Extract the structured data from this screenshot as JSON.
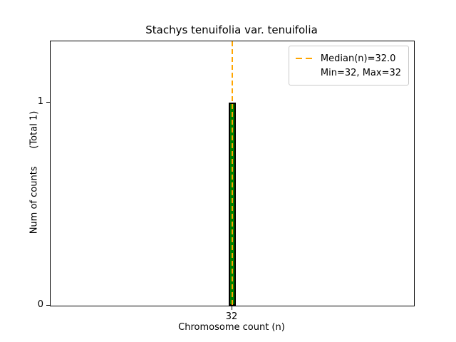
{
  "chart_data": {
    "type": "bar",
    "title": "Stachys tenuifolia var. tenuifolia",
    "xlabel": "Chromosome count (n)",
    "ylabel": "Num of counts      (Total 1)",
    "total_label": "(Total 1)",
    "categories": [
      "32"
    ],
    "x": [
      32
    ],
    "values": [
      1
    ],
    "xlim": [
      31.5,
      32.5
    ],
    "ylim": [
      0,
      1.3
    ],
    "xticks": [
      32
    ],
    "yticks": [
      0,
      1
    ],
    "bar_width": 0.02,
    "bar_color": "#008000",
    "bar_edge_color": "#000000",
    "median": 32.0,
    "min": 32,
    "max": 32,
    "median_line": {
      "x": 32,
      "color": "#FFA500",
      "style": "dashed"
    },
    "legend": {
      "position": "upper right",
      "items": [
        "Median(n)=32.0",
        "Min=32, Max=32"
      ]
    },
    "grid": false
  }
}
